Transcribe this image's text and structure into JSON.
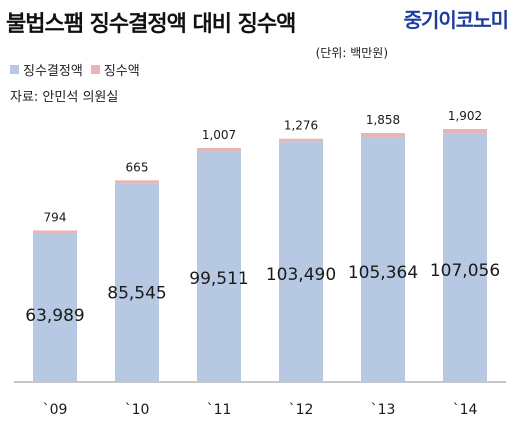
{
  "header": {
    "title": "불법스팸 징수결정액 대비 징수액",
    "brand": "중기이코노미",
    "unit": "(단위: 백만원)",
    "source": "자료: 안민석 의원실"
  },
  "legend": {
    "decided_label": "징수결정액",
    "collected_label": "징수액"
  },
  "chart_data": {
    "type": "bar",
    "stacked": true,
    "title": "불법스팸 징수결정액 대비 징수액",
    "categories": [
      "`09",
      "`10",
      "`11",
      "`12",
      "`13",
      "`14"
    ],
    "series": [
      {
        "name": "징수결정액",
        "color": "#b7c9e2",
        "values": [
          63989,
          85545,
          99511,
          103490,
          105364,
          107056
        ],
        "labels": [
          "63,989",
          "85,545",
          "99,511",
          "103,490",
          "105,364",
          "107,056"
        ]
      },
      {
        "name": "징수액",
        "color": "#e8b4b8",
        "values": [
          794,
          665,
          1007,
          1276,
          1858,
          1902
        ],
        "labels": [
          "794",
          "665",
          "1,007",
          "1,276",
          "1,858",
          "1,902"
        ]
      }
    ],
    "ylim": [
      0,
      118000
    ],
    "grid": false,
    "legend_position": "top-left"
  }
}
